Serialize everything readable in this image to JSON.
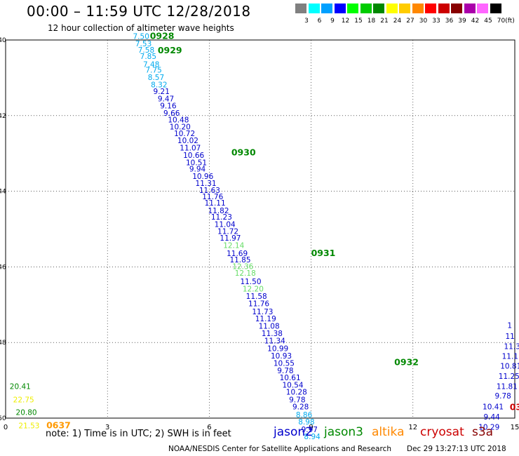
{
  "title": "00:00 – 11:59 UTC 12/28/2018",
  "subtitle": "12 hour collection of altimeter wave heights",
  "colorbar": {
    "unit": "(ft)",
    "entries": [
      {
        "label": "3",
        "color": "#808080"
      },
      {
        "label": "6",
        "color": "#00ffff"
      },
      {
        "label": "9",
        "color": "#00a0ff"
      },
      {
        "label": "12",
        "color": "#0000ff"
      },
      {
        "label": "15",
        "color": "#00ff00"
      },
      {
        "label": "18",
        "color": "#00cc00"
      },
      {
        "label": "21",
        "color": "#008800"
      },
      {
        "label": "24",
        "color": "#ffff00"
      },
      {
        "label": "27",
        "color": "#ffcc00"
      },
      {
        "label": "30",
        "color": "#ff8800"
      },
      {
        "label": "33",
        "color": "#ff0000"
      },
      {
        "label": "36",
        "color": "#cc0000"
      },
      {
        "label": "39",
        "color": "#880000"
      },
      {
        "label": "42",
        "color": "#aa00aa"
      },
      {
        "label": "45",
        "color": "#ff66ff"
      },
      {
        "label": "70",
        "color": "#000000"
      }
    ]
  },
  "colors": {
    "jason2": "#0000cc",
    "jason3": "#008800",
    "altika": "#ff8800",
    "cryosat": "#cc0000",
    "s3a": "#880000",
    "cyan": "#00aaee",
    "lightgreen": "#66dd66",
    "yellow": "#eeee00",
    "orange": "#ff9900"
  },
  "map": {
    "lon_ticks": [
      "0",
      "3",
      "6",
      "9",
      "12",
      "15"
    ],
    "lat_ticks": [
      "-40",
      "-42",
      "-44",
      "-46",
      "-48",
      "-50"
    ]
  },
  "observations": [
    {
      "lon": 3.75,
      "lat": -39.97,
      "value": "7.50",
      "color": "#00aaee"
    },
    {
      "lon": 3.82,
      "lat": -40.17,
      "value": "7.53",
      "color": "#00aaee"
    },
    {
      "lon": 3.9,
      "lat": -40.33,
      "value": "7.58",
      "color": "#00aaee"
    },
    {
      "lon": 3.96,
      "lat": -40.5,
      "value": "7.85",
      "color": "#00aaee"
    },
    {
      "lon": 4.05,
      "lat": -40.71,
      "value": "7.48",
      "color": "#00aaee"
    },
    {
      "lon": 4.12,
      "lat": -40.86,
      "value": "7.75",
      "color": "#00aaee"
    },
    {
      "lon": 4.19,
      "lat": -41.06,
      "value": "8.57",
      "color": "#00aaee"
    },
    {
      "lon": 4.28,
      "lat": -41.25,
      "value": "8.32",
      "color": "#00aaee"
    },
    {
      "lon": 4.35,
      "lat": -41.43,
      "value": "9.21",
      "color": "#0000cc"
    },
    {
      "lon": 4.48,
      "lat": -41.62,
      "value": "9.47",
      "color": "#0000cc"
    },
    {
      "lon": 4.55,
      "lat": -41.81,
      "value": "9.16",
      "color": "#0000cc"
    },
    {
      "lon": 4.65,
      "lat": -42.0,
      "value": "9.66",
      "color": "#0000cc"
    },
    {
      "lon": 4.78,
      "lat": -42.18,
      "value": "10.48",
      "color": "#0000cc"
    },
    {
      "lon": 4.83,
      "lat": -42.37,
      "value": "10.20",
      "color": "#0000cc"
    },
    {
      "lon": 4.96,
      "lat": -42.54,
      "value": "10.72",
      "color": "#0000cc"
    },
    {
      "lon": 5.06,
      "lat": -42.73,
      "value": "10.02",
      "color": "#0000cc"
    },
    {
      "lon": 5.13,
      "lat": -42.92,
      "value": "11.07",
      "color": "#0000cc"
    },
    {
      "lon": 5.23,
      "lat": -43.12,
      "value": "10.66",
      "color": "#0000cc"
    },
    {
      "lon": 5.31,
      "lat": -43.31,
      "value": "10.51",
      "color": "#0000cc"
    },
    {
      "lon": 5.41,
      "lat": -43.48,
      "value": "9.94",
      "color": "#0000cc"
    },
    {
      "lon": 5.5,
      "lat": -43.67,
      "value": "10.96",
      "color": "#0000cc"
    },
    {
      "lon": 5.59,
      "lat": -43.86,
      "value": "11.31",
      "color": "#0000cc"
    },
    {
      "lon": 5.7,
      "lat": -44.04,
      "value": "11.63",
      "color": "#0000cc"
    },
    {
      "lon": 5.79,
      "lat": -44.21,
      "value": "11.76",
      "color": "#0000cc"
    },
    {
      "lon": 5.86,
      "lat": -44.38,
      "value": "11.11",
      "color": "#0000cc"
    },
    {
      "lon": 5.96,
      "lat": -44.58,
      "value": "11.82",
      "color": "#0000cc"
    },
    {
      "lon": 6.05,
      "lat": -44.75,
      "value": "11.23",
      "color": "#0000cc"
    },
    {
      "lon": 6.15,
      "lat": -44.94,
      "value": "11.04",
      "color": "#0000cc"
    },
    {
      "lon": 6.24,
      "lat": -45.13,
      "value": "11.72",
      "color": "#0000cc"
    },
    {
      "lon": 6.31,
      "lat": -45.31,
      "value": "11.97",
      "color": "#0000cc"
    },
    {
      "lon": 6.41,
      "lat": -45.5,
      "value": "12.14",
      "color": "#66dd66"
    },
    {
      "lon": 6.51,
      "lat": -45.71,
      "value": "11.69",
      "color": "#0000cc"
    },
    {
      "lon": 6.6,
      "lat": -45.88,
      "value": "11.85",
      "color": "#0000cc"
    },
    {
      "lon": 6.68,
      "lat": -46.06,
      "value": "12.36",
      "color": "#66dd66"
    },
    {
      "lon": 6.75,
      "lat": -46.23,
      "value": "12.18",
      "color": "#66dd66"
    },
    {
      "lon": 6.91,
      "lat": -46.46,
      "value": "11.50",
      "color": "#0000cc"
    },
    {
      "lon": 6.98,
      "lat": -46.65,
      "value": "12.20",
      "color": "#66dd66"
    },
    {
      "lon": 7.08,
      "lat": -46.85,
      "value": "11.58",
      "color": "#0000cc"
    },
    {
      "lon": 7.15,
      "lat": -47.04,
      "value": "11.76",
      "color": "#0000cc"
    },
    {
      "lon": 7.26,
      "lat": -47.25,
      "value": "11.73",
      "color": "#0000cc"
    },
    {
      "lon": 7.35,
      "lat": -47.44,
      "value": "11.19",
      "color": "#0000cc"
    },
    {
      "lon": 7.45,
      "lat": -47.63,
      "value": "11.08",
      "color": "#0000cc"
    },
    {
      "lon": 7.54,
      "lat": -47.83,
      "value": "11.38",
      "color": "#0000cc"
    },
    {
      "lon": 7.62,
      "lat": -48.02,
      "value": "11.34",
      "color": "#0000cc"
    },
    {
      "lon": 7.71,
      "lat": -48.23,
      "value": "10.99",
      "color": "#0000cc"
    },
    {
      "lon": 7.81,
      "lat": -48.42,
      "value": "10.93",
      "color": "#0000cc"
    },
    {
      "lon": 7.89,
      "lat": -48.62,
      "value": "10.55",
      "color": "#0000cc"
    },
    {
      "lon": 8.0,
      "lat": -48.81,
      "value": "9.78",
      "color": "#0000cc"
    },
    {
      "lon": 8.07,
      "lat": -49.0,
      "value": "10.61",
      "color": "#0000cc"
    },
    {
      "lon": 8.15,
      "lat": -49.19,
      "value": "10.54",
      "color": "#0000cc"
    },
    {
      "lon": 8.26,
      "lat": -49.38,
      "value": "10.28",
      "color": "#0000cc"
    },
    {
      "lon": 8.35,
      "lat": -49.58,
      "value": "9.78",
      "color": "#0000cc"
    },
    {
      "lon": 8.45,
      "lat": -49.77,
      "value": "9.28",
      "color": "#0000cc"
    },
    {
      "lon": 8.55,
      "lat": -49.98,
      "value": "8.86",
      "color": "#00aaee"
    },
    {
      "lon": 8.62,
      "lat": -50.17,
      "value": "8.98",
      "color": "#00aaee"
    },
    {
      "lon": 8.71,
      "lat": -50.37,
      "value": "9.97",
      "color": "#0000cc"
    },
    {
      "lon": 8.79,
      "lat": -50.56,
      "value": "8.94",
      "color": "#00aaee"
    },
    {
      "lon": 0.12,
      "lat": -49.23,
      "value": "20.41",
      "color": "#008800"
    },
    {
      "lon": 0.22,
      "lat": -49.58,
      "value": "22.75",
      "color": "#eeee00"
    },
    {
      "lon": 0.3,
      "lat": -49.92,
      "value": "20.80",
      "color": "#008800"
    },
    {
      "lon": 0.38,
      "lat": -50.27,
      "value": "21.53",
      "color": "#eeee00"
    },
    {
      "lon": 14.78,
      "lat": -47.62,
      "value": "1",
      "color": "#0000cc"
    },
    {
      "lon": 14.72,
      "lat": -47.9,
      "value": "11",
      "color": "#0000cc"
    },
    {
      "lon": 14.68,
      "lat": -48.17,
      "value": "11.3",
      "color": "#0000cc"
    },
    {
      "lon": 14.62,
      "lat": -48.43,
      "value": "11.1",
      "color": "#0000cc"
    },
    {
      "lon": 14.57,
      "lat": -48.69,
      "value": "10.81",
      "color": "#0000cc"
    },
    {
      "lon": 14.52,
      "lat": -48.96,
      "value": "11.25",
      "color": "#0000cc"
    },
    {
      "lon": 14.46,
      "lat": -49.23,
      "value": "11.81",
      "color": "#0000cc"
    },
    {
      "lon": 14.41,
      "lat": -49.48,
      "value": "9.78",
      "color": "#0000cc"
    },
    {
      "lon": 14.05,
      "lat": -49.77,
      "value": "10.41",
      "color": "#0000cc"
    },
    {
      "lon": 14.08,
      "lat": -50.04,
      "value": "9.44",
      "color": "#0000cc"
    },
    {
      "lon": 13.93,
      "lat": -50.31,
      "value": "10.29",
      "color": "#0000cc"
    }
  ],
  "time_labels": [
    {
      "lon": 4.25,
      "lat": -39.97,
      "text": "0928",
      "color": "#008800"
    },
    {
      "lon": 4.48,
      "lat": -40.35,
      "text": "0929",
      "color": "#008800"
    },
    {
      "lon": 6.65,
      "lat": -43.05,
      "text": "0930",
      "color": "#008800"
    },
    {
      "lon": 9.0,
      "lat": -45.71,
      "text": "0931",
      "color": "#008800"
    },
    {
      "lon": 11.45,
      "lat": -48.6,
      "text": "0932",
      "color": "#008800"
    },
    {
      "lon": 1.2,
      "lat": -50.27,
      "text": "0637",
      "color": "#ff9900"
    },
    {
      "lon": 14.85,
      "lat": -49.79,
      "text": "03",
      "color": "#cc0000"
    }
  ],
  "note": "note: 1) Time is in UTC; 2) SWH is in feet",
  "satellites": [
    {
      "name": "jason2",
      "color": "#0000cc"
    },
    {
      "name": "jason3",
      "color": "#008800"
    },
    {
      "name": "altika",
      "color": "#ff8800"
    },
    {
      "name": "cryosat",
      "color": "#cc0000"
    },
    {
      "name": "s3a",
      "color": "#880000"
    }
  ],
  "credit": "NOAA/NESDIS Center for Satellite Applications and Research",
  "timestamp": "Dec 29 13:27:13 UTC 2018"
}
